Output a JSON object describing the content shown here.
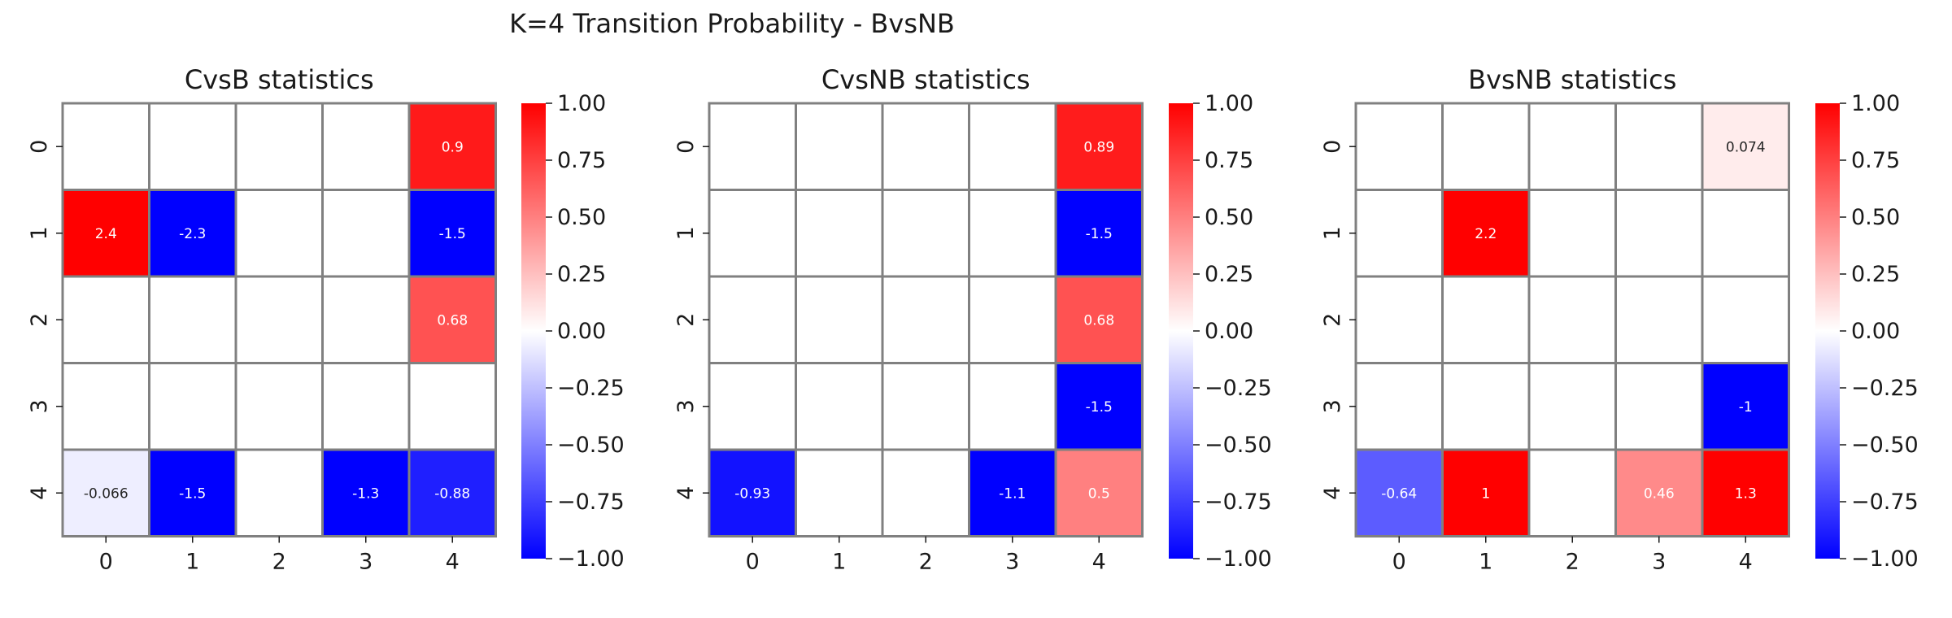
{
  "suptitle": "K=4 Transition Probability - BvsNB",
  "chart_data": [
    {
      "type": "heatmap",
      "title": "CvsB statistics",
      "x_ticks": [
        "0",
        "1",
        "2",
        "3",
        "4"
      ],
      "y_ticks": [
        "0",
        "1",
        "2",
        "3",
        "4"
      ],
      "values": [
        [
          0,
          0,
          0,
          0,
          0.9
        ],
        [
          2.4,
          -2.3,
          0,
          0,
          -1.5
        ],
        [
          0,
          0,
          0,
          0,
          0.68
        ],
        [
          0,
          0,
          0,
          0,
          0
        ],
        [
          -0.066,
          -1.5,
          0,
          -1.3,
          -0.88
        ]
      ],
      "labels": [
        [
          "",
          "",
          "",
          "",
          "0.9"
        ],
        [
          "2.4",
          "-2.3",
          "",
          "",
          "-1.5"
        ],
        [
          "",
          "",
          "",
          "",
          "0.68"
        ],
        [
          "",
          "",
          "",
          "",
          ""
        ],
        [
          "-0.066",
          "-1.5",
          "",
          "-1.3",
          "-0.88"
        ]
      ],
      "colorbar": {
        "vmin": -1,
        "vmax": 1,
        "ticks": [
          "1.00",
          "0.75",
          "0.50",
          "0.25",
          "0.00",
          "−0.25",
          "−0.50",
          "−0.75",
          "−1.00"
        ]
      }
    },
    {
      "type": "heatmap",
      "title": "CvsNB statistics",
      "x_ticks": [
        "0",
        "1",
        "2",
        "3",
        "4"
      ],
      "y_ticks": [
        "0",
        "1",
        "2",
        "3",
        "4"
      ],
      "values": [
        [
          0,
          0,
          0,
          0,
          0.89
        ],
        [
          0,
          0,
          0,
          0,
          -1.5
        ],
        [
          0,
          0,
          0,
          0,
          0.68
        ],
        [
          0,
          0,
          0,
          0,
          -1.5
        ],
        [
          -0.93,
          0,
          0,
          -1.1,
          0.5
        ]
      ],
      "labels": [
        [
          "",
          "",
          "",
          "",
          "0.89"
        ],
        [
          "",
          "",
          "",
          "",
          "-1.5"
        ],
        [
          "",
          "",
          "",
          "",
          "0.68"
        ],
        [
          "",
          "",
          "",
          "",
          "-1.5"
        ],
        [
          "-0.93",
          "",
          "",
          "-1.1",
          "0.5"
        ]
      ],
      "colorbar": {
        "vmin": -1,
        "vmax": 1,
        "ticks": [
          "1.00",
          "0.75",
          "0.50",
          "0.25",
          "0.00",
          "−0.25",
          "−0.50",
          "−0.75",
          "−1.00"
        ]
      }
    },
    {
      "type": "heatmap",
      "title": "BvsNB statistics",
      "x_ticks": [
        "0",
        "1",
        "2",
        "3",
        "4"
      ],
      "y_ticks": [
        "0",
        "1",
        "2",
        "3",
        "4"
      ],
      "values": [
        [
          0,
          0,
          0,
          0,
          0.074
        ],
        [
          0,
          2.2,
          0,
          0,
          0
        ],
        [
          0,
          0,
          0,
          0,
          0
        ],
        [
          0,
          0,
          0,
          0,
          -1
        ],
        [
          -0.64,
          1,
          0,
          0.46,
          1.3
        ]
      ],
      "labels": [
        [
          "",
          "",
          "",
          "",
          "0.074"
        ],
        [
          "",
          "2.2",
          "",
          "",
          ""
        ],
        [
          "",
          "",
          "",
          "",
          ""
        ],
        [
          "",
          "",
          "",
          "",
          "-1"
        ],
        [
          "-0.64",
          "1",
          "",
          "0.46",
          "1.3"
        ]
      ],
      "colorbar": {
        "vmin": -1,
        "vmax": 1,
        "ticks": [
          "1.00",
          "0.75",
          "0.50",
          "0.25",
          "0.00",
          "−0.25",
          "−0.50",
          "−0.75",
          "−1.00"
        ]
      }
    }
  ]
}
